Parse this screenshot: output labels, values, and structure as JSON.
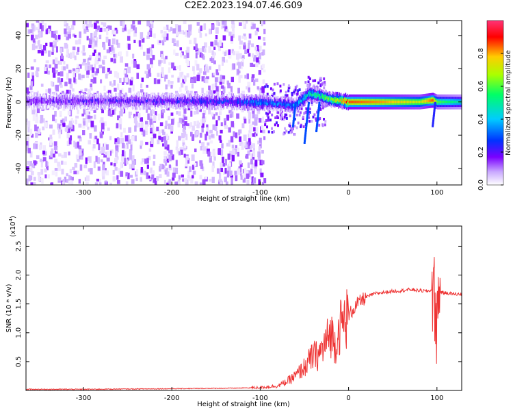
{
  "title": "C2E2.2023.194.07.46.G09",
  "colors": {
    "snr_line": "#ee3333",
    "colormap": [
      "#ffffff",
      "#c9a8ff",
      "#7a00ff",
      "#0033ff",
      "#00ccff",
      "#00ff66",
      "#aaff00",
      "#ffcc00",
      "#ff0000",
      "#ff3377"
    ]
  },
  "chart_data": [
    {
      "type": "heatmap",
      "xlabel": "Height of straight line (km)",
      "ylabel": "Frequency (Hz)",
      "xlim": [
        -365,
        128
      ],
      "ylim": [
        -50,
        49
      ],
      "xticks": [
        -300,
        -200,
        -100,
        0,
        100
      ],
      "xtick_labels": [
        "-300",
        "-200",
        "-100",
        "0",
        "100"
      ],
      "yticks": [
        -40,
        -20,
        0,
        20,
        40
      ],
      "ytick_labels": [
        "-40",
        "-20",
        "0",
        "20",
        "40"
      ],
      "colorbar": {
        "label": "Normalized spectral amplitude",
        "range": [
          0,
          1
        ],
        "ticks": [
          0,
          0.2,
          0.4,
          0.6,
          0.8
        ],
        "tick_labels": [
          "0.0",
          "0.2",
          "0.4",
          "0.6",
          "0.8"
        ]
      },
      "ridge": {
        "description_points_height_km": [
          -365,
          -300,
          -200,
          -130,
          -100,
          -80,
          -60,
          -45,
          -35,
          -25,
          -15,
          0,
          40,
          80,
          95,
          100,
          128
        ],
        "frequency_hz": [
          0.5,
          0.5,
          0.5,
          0,
          -0.5,
          -1,
          -2,
          5,
          4,
          2,
          1,
          0,
          0,
          0,
          1,
          0,
          0
        ],
        "amplitude": [
          0.2,
          0.22,
          0.25,
          0.3,
          0.38,
          0.35,
          0.4,
          0.5,
          0.55,
          0.6,
          0.7,
          0.85,
          0.8,
          0.7,
          0.85,
          0.6,
          0.5
        ]
      }
    },
    {
      "type": "line",
      "xlabel": "Height of straight line (km)",
      "ylabel": "SNR (10 * v/v)",
      "y_multiplier_label": "(x10",
      "y_multiplier_exp": "4",
      "xlim": [
        -365,
        128
      ],
      "ylim": [
        0,
        2.85
      ],
      "xticks": [
        -300,
        -200,
        -100,
        0,
        100
      ],
      "xtick_labels": [
        "-300",
        "-200",
        "-100",
        "0",
        "100"
      ],
      "yticks": [
        0.5,
        1.0,
        1.5,
        2.0,
        2.5
      ],
      "ytick_labels": [
        "0.5",
        "1.0",
        "1.5",
        "2.0",
        "2.5"
      ],
      "series": [
        {
          "x": [
            -365,
            -300,
            -200,
            -130,
            -100,
            -80,
            -70,
            -60,
            -50,
            -45,
            -40,
            -35,
            -30,
            -25,
            -20,
            -15,
            -10,
            -5,
            0,
            10,
            20,
            30,
            40,
            50,
            60,
            70,
            80,
            90,
            95,
            98,
            100,
            102,
            105,
            110,
            120,
            128
          ],
          "y": [
            0.02,
            0.02,
            0.03,
            0.04,
            0.05,
            0.08,
            0.15,
            0.25,
            0.4,
            0.5,
            0.6,
            0.6,
            0.7,
            0.85,
            1.0,
            0.8,
            1.1,
            1.2,
            1.3,
            1.5,
            1.62,
            1.68,
            1.7,
            1.72,
            1.73,
            1.75,
            1.73,
            1.72,
            1.75,
            1.5,
            1.1,
            1.75,
            1.7,
            1.69,
            1.67,
            1.67
          ]
        }
      ]
    }
  ]
}
